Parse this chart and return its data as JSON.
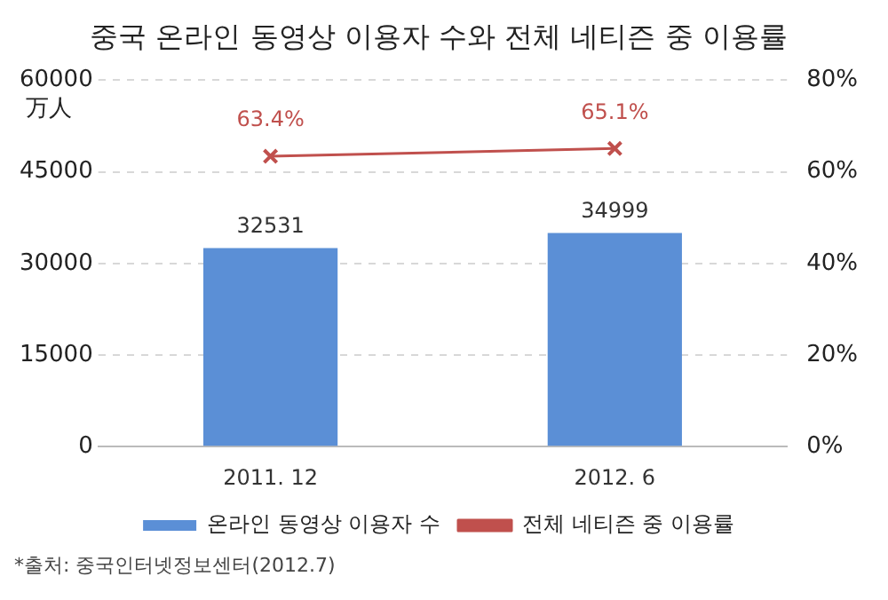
{
  "chart_data": {
    "type": "bar",
    "title": "중국 온라인 동영상 이용자 수와 전체 네티즌 중 이용률",
    "ylabel": "万人",
    "categories": [
      "2011. 12",
      "2012. 6"
    ],
    "series": [
      {
        "name": "온라인 동영상 이용자 수",
        "color": "#5b8fd6",
        "values": [
          32531,
          34999
        ],
        "value_labels": [
          "32531",
          "34999"
        ]
      },
      {
        "name": "전체 네티즌 중 이용률",
        "type": "line",
        "axis": "y2",
        "color": "#c0504d",
        "values": [
          63.4,
          65.1
        ],
        "value_labels": [
          "63.4%",
          "65.1%"
        ],
        "marker": "cross",
        "line_style": "solid"
      }
    ],
    "ylim": [
      0,
      60000
    ],
    "yticks": [
      0,
      15000,
      30000,
      45000,
      60000
    ],
    "y2lim": [
      0,
      80
    ],
    "y2ticks": [
      {
        "value": 0,
        "label": "0%"
      },
      {
        "value": 20,
        "label": "20%"
      },
      {
        "value": 40,
        "label": "40%"
      },
      {
        "value": 60,
        "label": "60%"
      },
      {
        "value": 80,
        "label": "80%"
      }
    ],
    "grid": "y",
    "legend": "bottom",
    "annotations": [
      "*출처: 중국인터넷정보센터(2012.7)"
    ]
  }
}
